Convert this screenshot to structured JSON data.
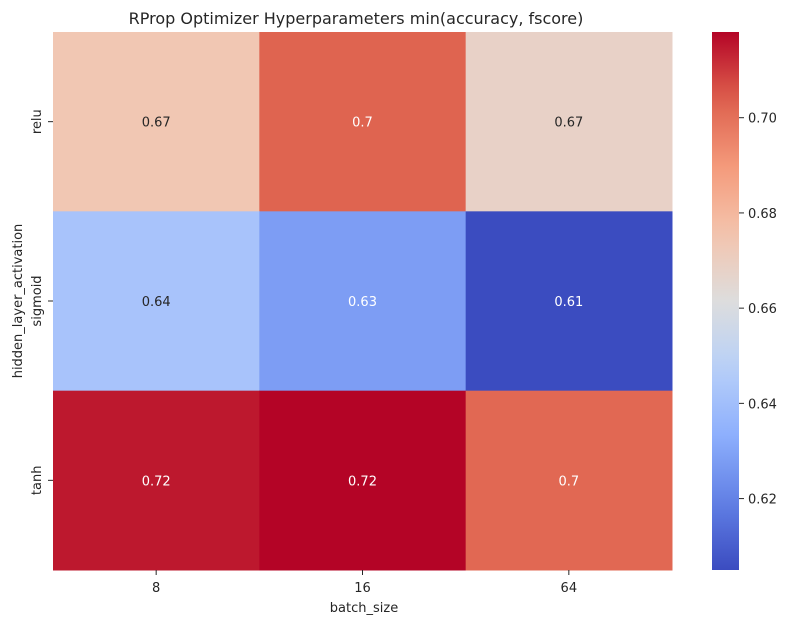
{
  "chart_data": {
    "type": "heatmap",
    "title": "RProp Optimizer Hyperparameters min(accuracy, fscore)",
    "xlabel": "batch_size",
    "ylabel": "hidden_layer_activation",
    "x_categories": [
      "8",
      "16",
      "64"
    ],
    "y_categories": [
      "relu",
      "sigmoid",
      "tanh"
    ],
    "values": [
      [
        0.67,
        0.7,
        0.67
      ],
      [
        0.64,
        0.63,
        0.61
      ],
      [
        0.72,
        0.72,
        0.7
      ]
    ],
    "value_precise": [
      [
        0.674,
        0.703,
        0.668
      ],
      [
        0.642,
        0.628,
        0.605
      ],
      [
        0.715,
        0.718,
        0.702
      ]
    ],
    "cell_labels": [
      [
        "0.67",
        "0.7",
        "0.67"
      ],
      [
        "0.64",
        "0.63",
        "0.61"
      ],
      [
        "0.72",
        "0.72",
        "0.7"
      ]
    ],
    "colormap": "coolwarm",
    "colorbar": {
      "range": [
        0.605,
        0.718
      ],
      "ticks": [
        0.62,
        0.64,
        0.66,
        0.68,
        0.7
      ],
      "tick_labels": [
        "0.62",
        "0.64",
        "0.66",
        "0.68",
        "0.70"
      ]
    },
    "grid": false
  }
}
